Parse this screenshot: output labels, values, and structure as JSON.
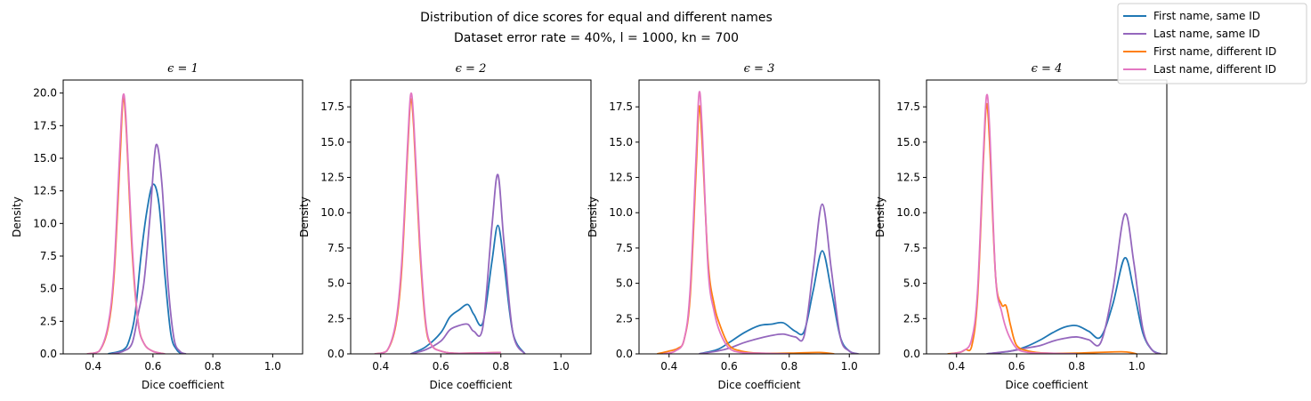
{
  "figure": {
    "title_line1": "Distribution of dice scores for equal and different names",
    "title_line2": "Dataset error rate = 40%,    l = 1000,    kn = 700"
  },
  "legend": {
    "placement": "top-right",
    "entries": [
      {
        "label": "First name, same ID",
        "color": "#1f77b4"
      },
      {
        "label": "Last name, same ID",
        "color": "#9467bd"
      },
      {
        "label": "First name, different ID",
        "color": "#ff7f0e"
      },
      {
        "label": "Last name, different ID",
        "color": "#e377c2"
      }
    ]
  },
  "chart_data": [
    {
      "type": "line",
      "title": "ϵ = 1",
      "xlabel": "Dice coefficient",
      "ylabel": "Density",
      "xlim": [
        0.3,
        1.1
      ],
      "ylim": [
        0,
        21
      ],
      "xticks": [
        0.4,
        0.6,
        0.8,
        1.0
      ],
      "yticks": [
        0.0,
        2.5,
        5.0,
        7.5,
        10.0,
        12.5,
        15.0,
        17.5,
        20.0
      ],
      "series": [
        {
          "name": "First name, same ID",
          "color": "#1f77b4",
          "x": [
            0.45,
            0.5,
            0.52,
            0.54,
            0.56,
            0.58,
            0.6,
            0.62,
            0.64,
            0.66,
            0.68,
            0.7
          ],
          "y": [
            0,
            0.3,
            1.0,
            3.0,
            7.5,
            11.0,
            13.0,
            11.5,
            6.0,
            1.5,
            0.3,
            0
          ]
        },
        {
          "name": "Last name, same ID",
          "color": "#9467bd",
          "x": [
            0.46,
            0.5,
            0.53,
            0.55,
            0.57,
            0.59,
            0.61,
            0.63,
            0.65,
            0.67,
            0.69,
            0.71
          ],
          "y": [
            0,
            0.2,
            0.8,
            3.0,
            5.5,
            10.5,
            16.0,
            13.0,
            5.5,
            1.2,
            0.2,
            0
          ]
        },
        {
          "name": "First name, different ID",
          "color": "#ff7f0e",
          "x": [
            0.38,
            0.42,
            0.45,
            0.47,
            0.49,
            0.5,
            0.51,
            0.53,
            0.55,
            0.57,
            0.6,
            0.64
          ],
          "y": [
            0,
            0.2,
            2.0,
            6.0,
            15.0,
            19.5,
            17.5,
            8.0,
            2.5,
            0.8,
            0.2,
            0
          ]
        },
        {
          "name": "Last name, different ID",
          "color": "#e377c2",
          "x": [
            0.38,
            0.42,
            0.45,
            0.47,
            0.49,
            0.5,
            0.51,
            0.53,
            0.55,
            0.57,
            0.6,
            0.64
          ],
          "y": [
            0,
            0.2,
            2.2,
            6.5,
            16.0,
            19.8,
            18.0,
            8.5,
            2.5,
            0.8,
            0.2,
            0
          ]
        }
      ]
    },
    {
      "type": "line",
      "title": "ϵ = 2",
      "xlabel": "Dice coefficient",
      "ylabel": "Density",
      "xlim": [
        0.3,
        1.1
      ],
      "ylim": [
        0,
        19.4
      ],
      "xticks": [
        0.4,
        0.6,
        0.8,
        1.0
      ],
      "yticks": [
        0.0,
        2.5,
        5.0,
        7.5,
        10.0,
        12.5,
        15.0,
        17.5
      ],
      "series": [
        {
          "name": "First name, same ID",
          "color": "#1f77b4",
          "x": [
            0.5,
            0.55,
            0.6,
            0.63,
            0.66,
            0.69,
            0.71,
            0.74,
            0.77,
            0.79,
            0.81,
            0.84,
            0.88
          ],
          "y": [
            0,
            0.5,
            1.5,
            2.6,
            3.1,
            3.5,
            2.8,
            2.2,
            6.5,
            9.1,
            6.5,
            1.5,
            0
          ]
        },
        {
          "name": "Last name, same ID",
          "color": "#9467bd",
          "x": [
            0.5,
            0.55,
            0.6,
            0.63,
            0.66,
            0.69,
            0.71,
            0.74,
            0.77,
            0.79,
            0.81,
            0.84,
            0.88
          ],
          "y": [
            0,
            0.3,
            0.9,
            1.7,
            2.0,
            2.1,
            1.6,
            1.9,
            9.0,
            12.7,
            8.0,
            1.5,
            0
          ]
        },
        {
          "name": "First name, different ID",
          "color": "#ff7f0e",
          "x": [
            0.38,
            0.42,
            0.45,
            0.47,
            0.49,
            0.5,
            0.51,
            0.53,
            0.55,
            0.57,
            0.6,
            0.64,
            0.7,
            0.8
          ],
          "y": [
            0,
            0.2,
            2.0,
            6.0,
            14.5,
            18.0,
            16.0,
            7.5,
            2.0,
            0.6,
            0.2,
            0.05,
            0.05,
            0.1
          ]
        },
        {
          "name": "Last name, different ID",
          "color": "#e377c2",
          "x": [
            0.38,
            0.42,
            0.45,
            0.47,
            0.49,
            0.5,
            0.51,
            0.53,
            0.55,
            0.57,
            0.6,
            0.64,
            0.7,
            0.8
          ],
          "y": [
            0,
            0.2,
            2.2,
            6.5,
            15.0,
            18.4,
            16.5,
            8.0,
            2.2,
            0.6,
            0.2,
            0.05,
            0.05,
            0.1
          ]
        }
      ]
    },
    {
      "type": "line",
      "title": "ϵ = 3",
      "xlabel": "Dice coefficient",
      "ylabel": "Density",
      "xlim": [
        0.3,
        1.1
      ],
      "ylim": [
        0,
        19.4
      ],
      "xticks": [
        0.4,
        0.6,
        0.8,
        1.0
      ],
      "yticks": [
        0.0,
        2.5,
        5.0,
        7.5,
        10.0,
        12.5,
        15.0,
        17.5
      ],
      "series": [
        {
          "name": "First name, same ID",
          "color": "#1f77b4",
          "x": [
            0.5,
            0.56,
            0.6,
            0.65,
            0.7,
            0.74,
            0.78,
            0.82,
            0.85,
            0.88,
            0.91,
            0.94,
            0.97,
            1.0,
            1.03
          ],
          "y": [
            0,
            0.3,
            0.8,
            1.5,
            2.0,
            2.1,
            2.2,
            1.6,
            1.6,
            4.5,
            7.3,
            4.5,
            1.2,
            0.2,
            0
          ]
        },
        {
          "name": "Last name, same ID",
          "color": "#9467bd",
          "x": [
            0.5,
            0.56,
            0.6,
            0.65,
            0.7,
            0.74,
            0.78,
            0.82,
            0.85,
            0.88,
            0.91,
            0.94,
            0.97,
            1.0,
            1.03
          ],
          "y": [
            0,
            0.2,
            0.4,
            0.8,
            1.1,
            1.3,
            1.4,
            1.2,
            1.3,
            6.0,
            10.6,
            6.0,
            1.2,
            0.2,
            0
          ]
        },
        {
          "name": "First name, different ID",
          "color": "#ff7f0e",
          "x": [
            0.36,
            0.4,
            0.43,
            0.45,
            0.47,
            0.49,
            0.5,
            0.51,
            0.53,
            0.55,
            0.57,
            0.6,
            0.64,
            0.7,
            0.8,
            0.9,
            0.95
          ],
          "y": [
            0,
            0.2,
            0.4,
            1.0,
            4.0,
            13.0,
            17.5,
            15.0,
            6.5,
            3.5,
            2.0,
            0.6,
            0.2,
            0.05,
            0.05,
            0.1,
            0
          ]
        },
        {
          "name": "Last name, different ID",
          "color": "#e377c2",
          "x": [
            0.38,
            0.42,
            0.45,
            0.47,
            0.49,
            0.5,
            0.51,
            0.53,
            0.55,
            0.57,
            0.6,
            0.64,
            0.7,
            0.8
          ],
          "y": [
            0,
            0.2,
            1.0,
            4.5,
            14.0,
            18.5,
            16.0,
            6.0,
            3.0,
            1.5,
            0.4,
            0.1,
            0.05,
            0
          ]
        }
      ]
    },
    {
      "type": "line",
      "title": "ϵ = 4",
      "xlabel": "Dice coefficient",
      "ylabel": "Density",
      "xlim": [
        0.3,
        1.1
      ],
      "ylim": [
        0,
        19.4
      ],
      "xticks": [
        0.4,
        0.6,
        0.8,
        1.0
      ],
      "yticks": [
        0.0,
        2.5,
        5.0,
        7.5,
        10.0,
        12.5,
        15.0,
        17.5
      ],
      "series": [
        {
          "name": "First name, same ID",
          "color": "#1f77b4",
          "x": [
            0.5,
            0.58,
            0.63,
            0.68,
            0.72,
            0.76,
            0.8,
            0.84,
            0.88,
            0.92,
            0.96,
            0.99,
            1.02,
            1.05,
            1.08
          ],
          "y": [
            0,
            0.2,
            0.5,
            1.0,
            1.5,
            1.9,
            2.0,
            1.6,
            1.2,
            3.5,
            6.8,
            4.5,
            1.5,
            0.3,
            0
          ]
        },
        {
          "name": "Last name, same ID",
          "color": "#9467bd",
          "x": [
            0.5,
            0.58,
            0.63,
            0.68,
            0.72,
            0.76,
            0.8,
            0.84,
            0.88,
            0.92,
            0.96,
            0.99,
            1.02,
            1.05,
            1.08
          ],
          "y": [
            0,
            0.2,
            0.4,
            0.6,
            0.9,
            1.1,
            1.2,
            1.0,
            0.8,
            4.5,
            9.9,
            6.5,
            1.8,
            0.3,
            0
          ]
        },
        {
          "name": "First name, different ID",
          "color": "#ff7f0e",
          "x": [
            0.37,
            0.41,
            0.43,
            0.45,
            0.47,
            0.49,
            0.5,
            0.51,
            0.53,
            0.55,
            0.565,
            0.58,
            0.6,
            0.64,
            0.7,
            0.8,
            0.95,
            1.0
          ],
          "y": [
            0,
            0.1,
            0.3,
            0.5,
            4.0,
            14.0,
            17.7,
            15.0,
            5.5,
            3.5,
            3.4,
            2.0,
            0.6,
            0.2,
            0.05,
            0.05,
            0.15,
            0
          ]
        },
        {
          "name": "Last name, different ID",
          "color": "#e377c2",
          "x": [
            0.38,
            0.42,
            0.45,
            0.47,
            0.49,
            0.5,
            0.51,
            0.53,
            0.55,
            0.57,
            0.6,
            0.64,
            0.7,
            0.8
          ],
          "y": [
            0,
            0.2,
            1.0,
            4.5,
            14.5,
            18.3,
            16.0,
            5.5,
            3.0,
            1.5,
            0.4,
            0.1,
            0.05,
            0
          ]
        }
      ]
    }
  ]
}
